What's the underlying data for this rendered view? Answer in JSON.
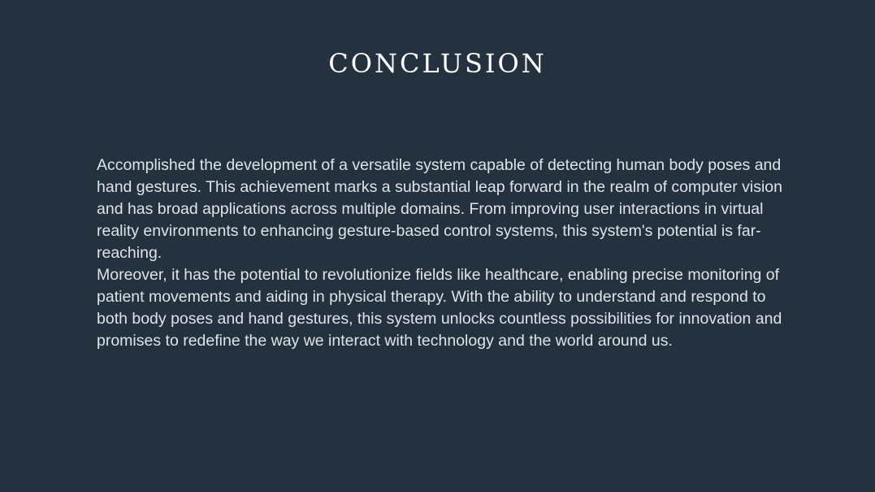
{
  "slide": {
    "title": "CONCLUSION",
    "paragraphs": [
      "Accomplished the development of a versatile system capable of detecting human body poses and hand gestures. This achievement marks a substantial leap forward in the realm of computer vision and has broad applications across multiple domains. From improving user interactions in virtual reality environments to enhancing gesture-based control systems, this system's potential is far-reaching.",
      "Moreover, it has the potential to revolutionize fields like healthcare, enabling precise monitoring of patient movements and aiding in physical therapy. With the ability to understand and respond to both body poses and hand gestures, this system unlocks countless possibilities for innovation and promises to redefine the way we interact with technology and the world around us."
    ]
  },
  "colors": {
    "background": "#243240",
    "title": "#ffffff",
    "body_text": "#dfe3e8"
  }
}
